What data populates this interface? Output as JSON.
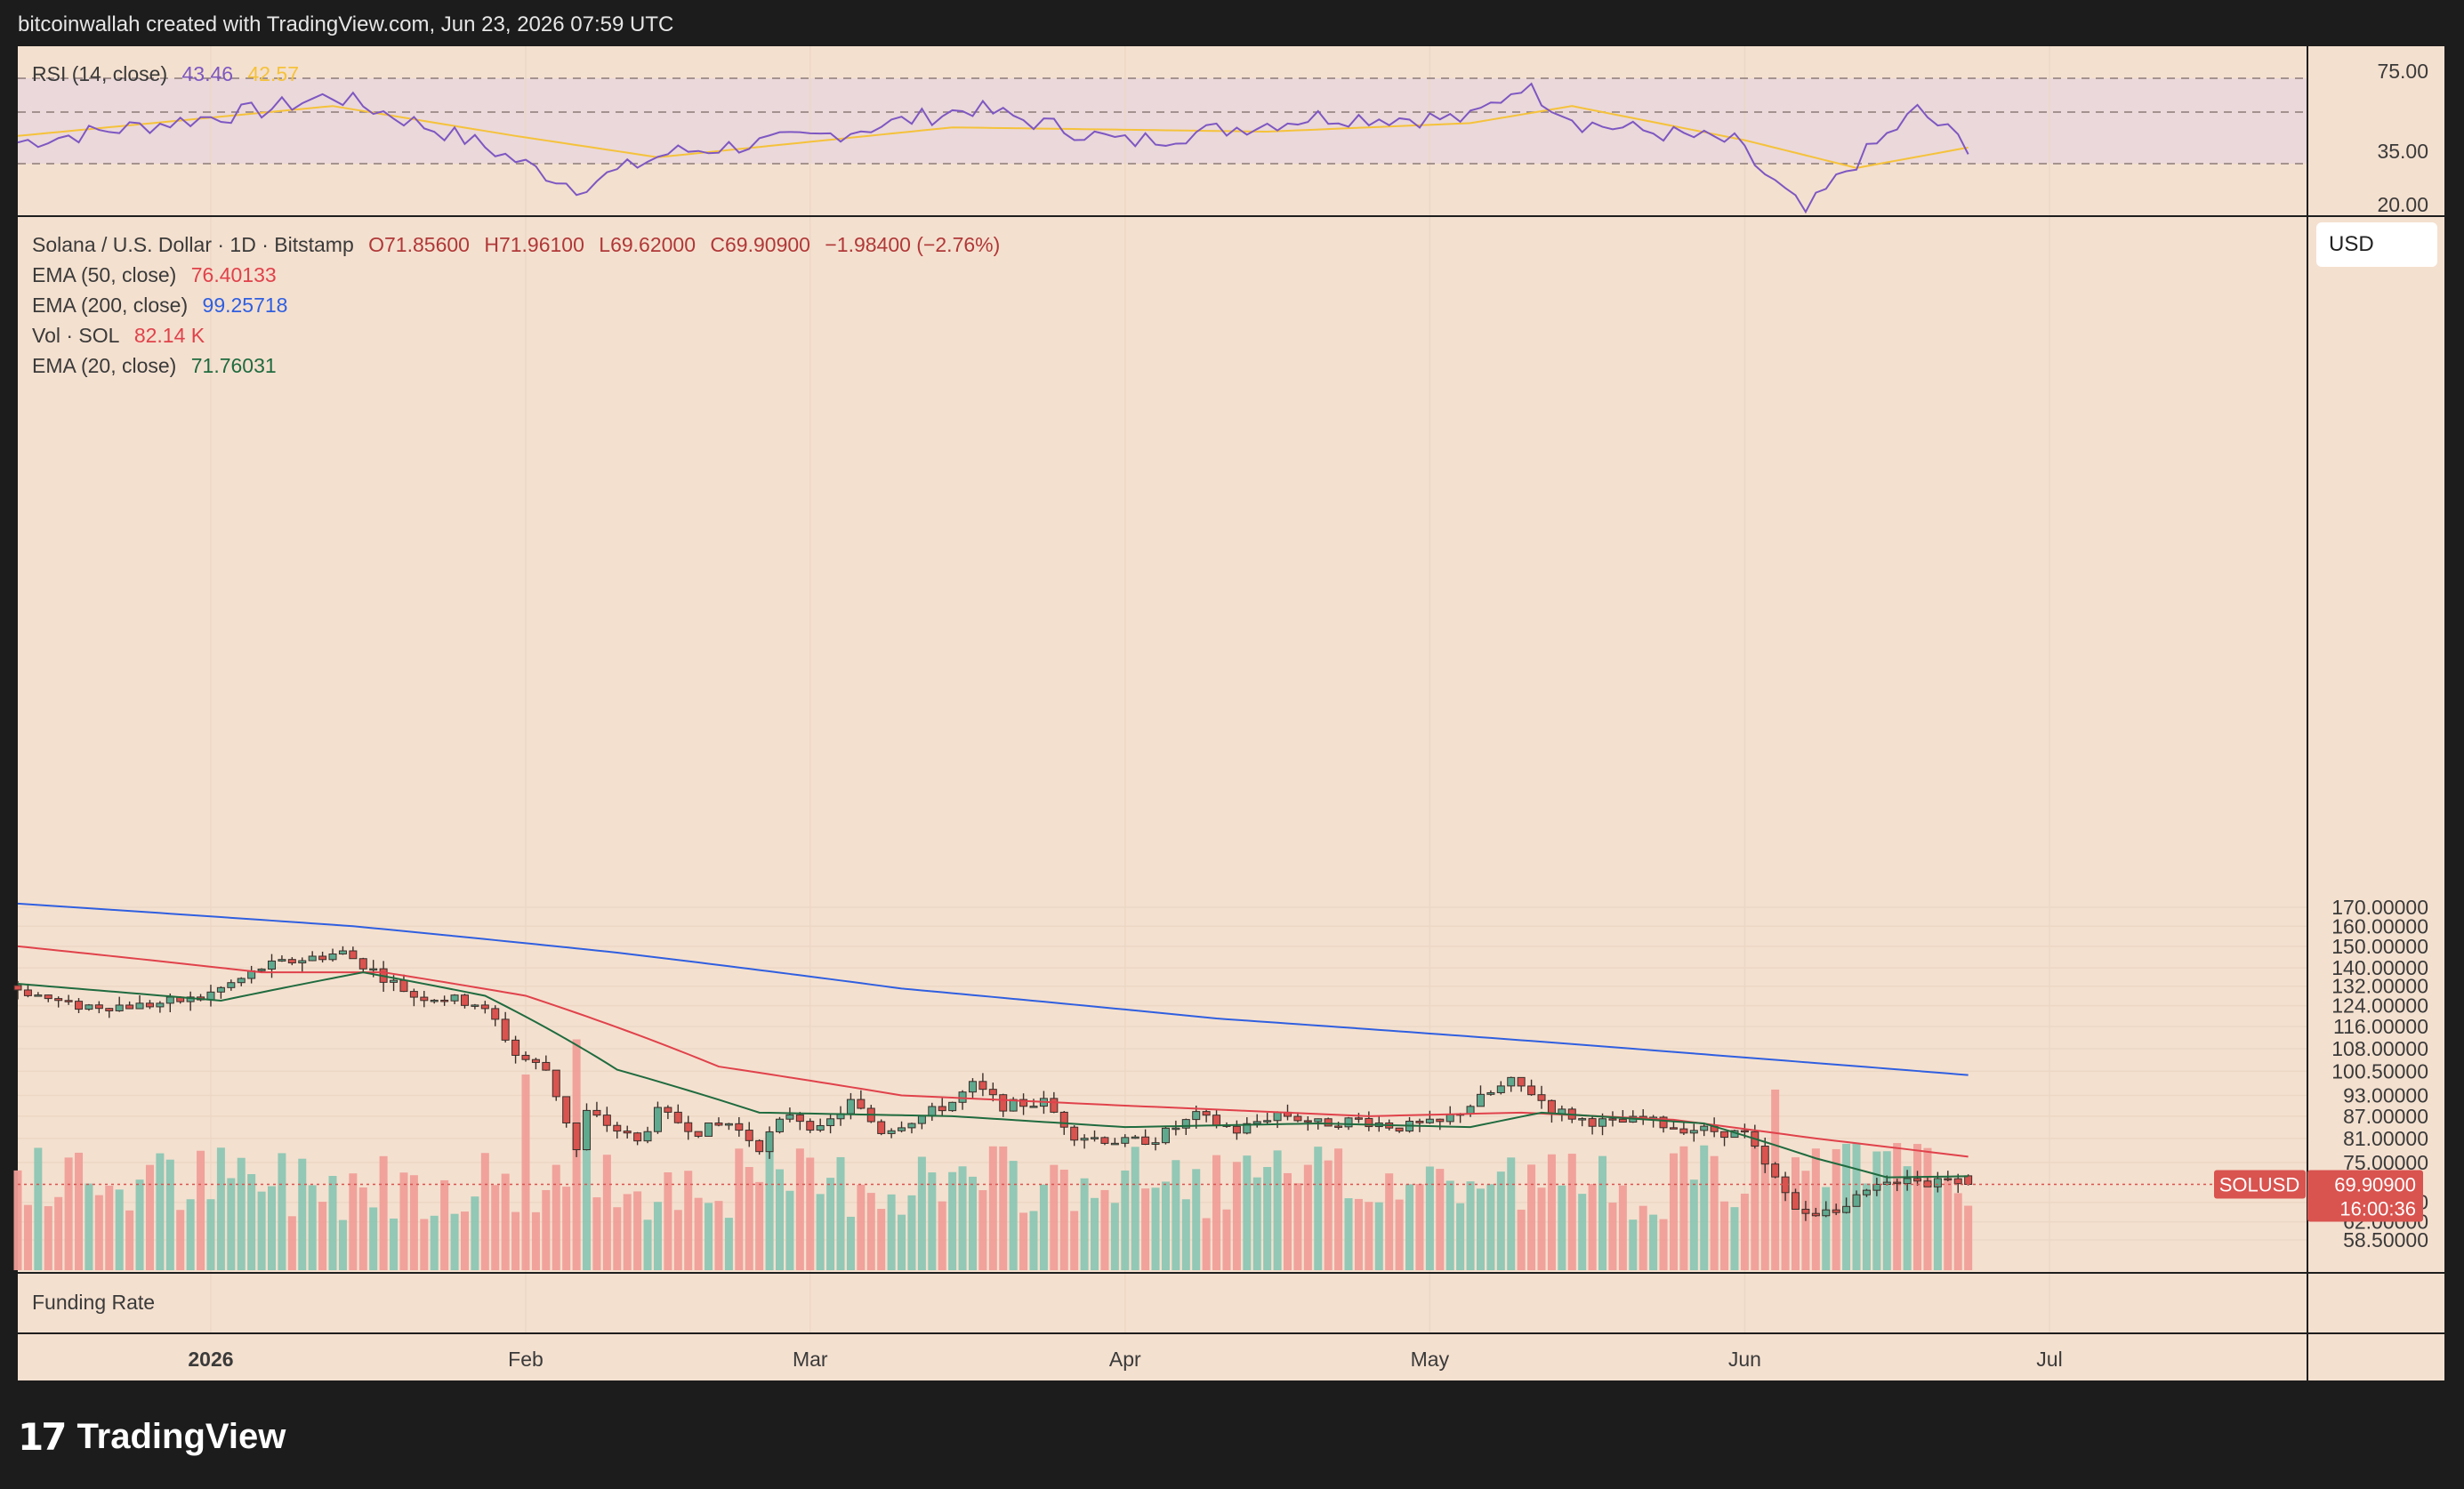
{
  "header": {
    "text": "bitcoinwallah created with TradingView.com, Jun 23, 2026 07:59 UTC"
  },
  "logo": {
    "mark": "17",
    "text": "TradingView"
  },
  "rsi_pane": {
    "title": "RSI (14, close)",
    "rsi_value": "43.46",
    "ma_value": "42.57",
    "ticks": [
      "75.00",
      "35.00",
      "20.00"
    ],
    "colors": {
      "rsi": "#7e57c2",
      "ma": "#f5c23a"
    }
  },
  "main_legend": {
    "symbol": "Solana / U.S. Dollar · 1D · Bitstamp",
    "open": "O71.85600",
    "high": "H71.96100",
    "low": "L69.62000",
    "close": "C69.90900",
    "change": "−1.98400 (−2.76%)",
    "indicators": [
      {
        "label": "EMA (50, close)",
        "value": "76.40133",
        "color": "#e0424b"
      },
      {
        "label": "EMA (200, close)",
        "value": "99.25718",
        "color": "#2f5fe0"
      },
      {
        "label": "Vol · SOL",
        "value": "82.14 K",
        "color": "#e0424b"
      },
      {
        "label": "EMA (20, close)",
        "value": "71.76031",
        "color": "#1f6b3f"
      }
    ]
  },
  "currency_button": "USD",
  "price_axis_ticks": [
    "170.00000",
    "160.00000",
    "150.00000",
    "140.00000",
    "132.00000",
    "124.00000",
    "116.00000",
    "108.00000",
    "100.50000",
    "93.00000",
    "87.00000",
    "81.00000",
    "75.00000",
    "66.00000",
    "62.00000",
    "58.50000"
  ],
  "last_price_label": {
    "symbol": "SOLUSD",
    "price": "69.90900",
    "countdown": "16:00:36"
  },
  "funding_pane": {
    "title": "Funding Rate"
  },
  "time_axis": [
    {
      "label": "2026",
      "bold": true
    },
    {
      "label": "Feb"
    },
    {
      "label": "Mar"
    },
    {
      "label": "Apr"
    },
    {
      "label": "May"
    },
    {
      "label": "Jun"
    },
    {
      "label": "Jul"
    }
  ],
  "chart_data": {
    "type": "candlestick",
    "title": "Solana / U.S. Dollar · 1D · Bitstamp",
    "x_range": [
      "2025-12-13",
      "2026-06-23"
    ],
    "y_scale": "log",
    "ylim": [
      56.5,
      175
    ],
    "colors": {
      "up": "#5fa98f",
      "down": "#d9534f",
      "ema20": "#1f6b3f",
      "ema50": "#e0424b",
      "ema200": "#2f5fe0"
    },
    "close_keypoints": [
      [
        "2025-12-13",
        131
      ],
      [
        "2025-12-18",
        124
      ],
      [
        "2025-12-25",
        124
      ],
      [
        "2025-12-31",
        127
      ],
      [
        "2026-01-04",
        135
      ],
      [
        "2026-01-06",
        140
      ],
      [
        "2026-01-10",
        144
      ],
      [
        "2026-01-14",
        147
      ],
      [
        "2026-01-18",
        136
      ],
      [
        "2026-01-21",
        128
      ],
      [
        "2026-01-24",
        127
      ],
      [
        "2026-01-27",
        125
      ],
      [
        "2026-01-29",
        118
      ],
      [
        "2026-01-31",
        106
      ],
      [
        "2026-02-03",
        101
      ],
      [
        "2026-02-06",
        78
      ],
      [
        "2026-02-07",
        88
      ],
      [
        "2026-02-12",
        80
      ],
      [
        "2026-02-14",
        88
      ],
      [
        "2026-02-18",
        83
      ],
      [
        "2026-02-21",
        85
      ],
      [
        "2026-02-24",
        79
      ],
      [
        "2026-02-27",
        88
      ],
      [
        "2026-03-02",
        83
      ],
      [
        "2026-03-05",
        91
      ],
      [
        "2026-03-08",
        83
      ],
      [
        "2026-03-12",
        87
      ],
      [
        "2026-03-15",
        91
      ],
      [
        "2026-03-17",
        96
      ],
      [
        "2026-03-20",
        90
      ],
      [
        "2026-03-24",
        91
      ],
      [
        "2026-03-27",
        82
      ],
      [
        "2026-04-01",
        80
      ],
      [
        "2026-04-04",
        81
      ],
      [
        "2026-04-08",
        87
      ],
      [
        "2026-04-12",
        83
      ],
      [
        "2026-04-16",
        88
      ],
      [
        "2026-04-20",
        85
      ],
      [
        "2026-04-24",
        86
      ],
      [
        "2026-04-28",
        84
      ],
      [
        "2026-05-02",
        85
      ],
      [
        "2026-05-06",
        92
      ],
      [
        "2026-05-09",
        97
      ],
      [
        "2026-05-11",
        94
      ],
      [
        "2026-05-13",
        89
      ],
      [
        "2026-05-16",
        86
      ],
      [
        "2026-05-19",
        85
      ],
      [
        "2026-05-22",
        86
      ],
      [
        "2026-05-25",
        84
      ],
      [
        "2026-05-29",
        83
      ],
      [
        "2026-06-01",
        82
      ],
      [
        "2026-06-03",
        74
      ],
      [
        "2026-06-05",
        68
      ],
      [
        "2026-06-07",
        63
      ],
      [
        "2026-06-09",
        65
      ],
      [
        "2026-06-11",
        65
      ],
      [
        "2026-06-13",
        68
      ],
      [
        "2026-06-15",
        70
      ],
      [
        "2026-06-17",
        72
      ],
      [
        "2026-06-19",
        70
      ],
      [
        "2026-06-21",
        72
      ],
      [
        "2026-06-23",
        69.909
      ]
    ],
    "ema_keypoints": {
      "ema20": [
        [
          "2025-12-13",
          133
        ],
        [
          "2026-01-02",
          126
        ],
        [
          "2026-01-16",
          138
        ],
        [
          "2026-01-28",
          128
        ],
        [
          "2026-02-10",
          101
        ],
        [
          "2026-02-24",
          88
        ],
        [
          "2026-03-15",
          87
        ],
        [
          "2026-04-01",
          84
        ],
        [
          "2026-04-20",
          85
        ],
        [
          "2026-05-05",
          84
        ],
        [
          "2026-05-12",
          88
        ],
        [
          "2026-05-28",
          85
        ],
        [
          "2026-06-08",
          76
        ],
        [
          "2026-06-15",
          71.5
        ],
        [
          "2026-06-23",
          71.76
        ]
      ],
      "ema50": [
        [
          "2025-12-13",
          150
        ],
        [
          "2026-01-06",
          138
        ],
        [
          "2026-01-18",
          138
        ],
        [
          "2026-02-01",
          128
        ],
        [
          "2026-02-20",
          102
        ],
        [
          "2026-03-10",
          93
        ],
        [
          "2026-04-01",
          90
        ],
        [
          "2026-04-25",
          87
        ],
        [
          "2026-05-10",
          88
        ],
        [
          "2026-05-25",
          86
        ],
        [
          "2026-06-08",
          81
        ],
        [
          "2026-06-23",
          76.4
        ]
      ],
      "ema200": [
        [
          "2025-12-13",
          172
        ],
        [
          "2026-01-15",
          160
        ],
        [
          "2026-02-10",
          147
        ],
        [
          "2026-03-10",
          131
        ],
        [
          "2026-04-10",
          119
        ],
        [
          "2026-05-10",
          111
        ],
        [
          "2026-06-01",
          105
        ],
        [
          "2026-06-23",
          99.26
        ]
      ]
    },
    "rsi_keypoints": [
      [
        "2025-12-13",
        45
      ],
      [
        "2026-01-06",
        60
      ],
      [
        "2026-01-13",
        67
      ],
      [
        "2026-01-27",
        45
      ],
      [
        "2026-02-06",
        24
      ],
      [
        "2026-02-15",
        40
      ],
      [
        "2026-03-01",
        47
      ],
      [
        "2026-03-17",
        61
      ],
      [
        "2026-04-01",
        45
      ],
      [
        "2026-04-20",
        57
      ],
      [
        "2026-05-05",
        56
      ],
      [
        "2026-05-10",
        72
      ],
      [
        "2026-05-16",
        54
      ],
      [
        "2026-05-31",
        45
      ],
      [
        "2026-06-03",
        30
      ],
      [
        "2026-06-07",
        12
      ],
      [
        "2026-06-11",
        32
      ],
      [
        "2026-06-18",
        60
      ],
      [
        "2026-06-23",
        43.46
      ]
    ],
    "rsi_ma_keypoints": [
      [
        "2025-12-13",
        48
      ],
      [
        "2026-01-13",
        62
      ],
      [
        "2026-01-31",
        48
      ],
      [
        "2026-02-14",
        38
      ],
      [
        "2026-03-15",
        52
      ],
      [
        "2026-04-15",
        50
      ],
      [
        "2026-05-05",
        54
      ],
      [
        "2026-05-15",
        62
      ],
      [
        "2026-06-01",
        46
      ],
      [
        "2026-06-12",
        33
      ],
      [
        "2026-06-23",
        42.57
      ]
    ],
    "volume_spikes": [
      [
        "2026-02-01",
        0.78
      ],
      [
        "2026-02-04",
        0.42
      ],
      [
        "2026-02-06",
        0.92
      ],
      [
        "2026-06-02",
        0.52
      ],
      [
        "2026-06-04",
        0.72
      ],
      [
        "2026-06-06",
        0.45
      ]
    ]
  }
}
